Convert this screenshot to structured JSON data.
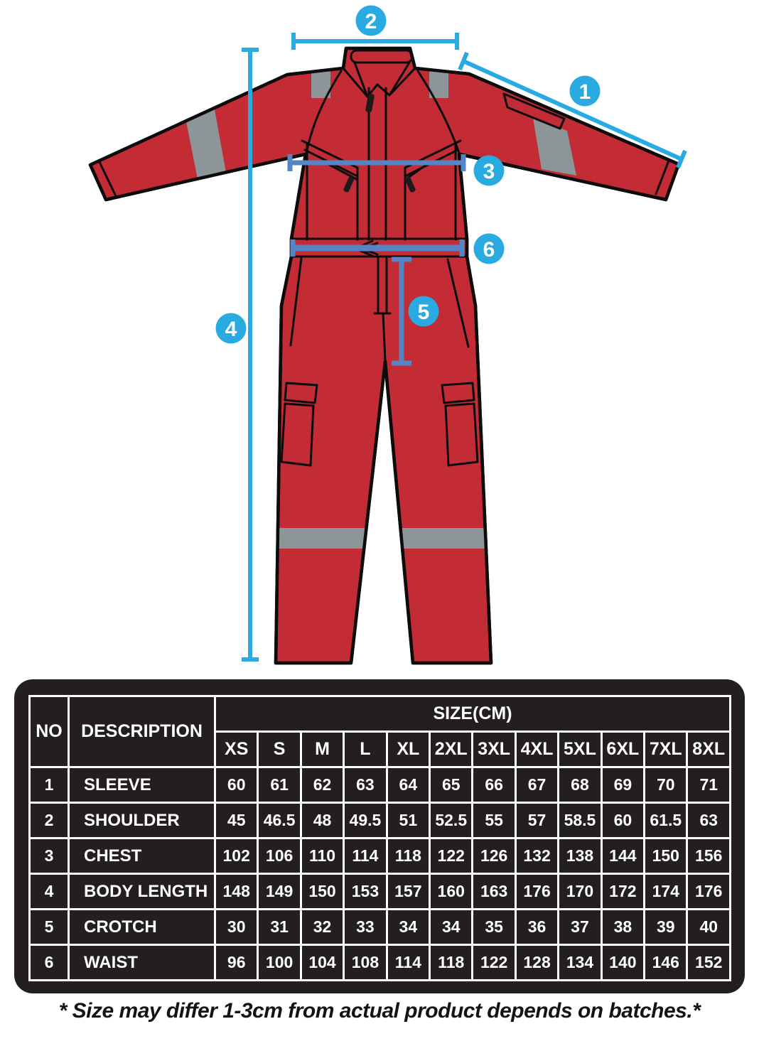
{
  "diagram": {
    "garment": "coverall-front-view",
    "suit_color": "#C32B35",
    "reflective_stripe_color": "#8E9598",
    "annotation_color": "#29ABE2",
    "annotation_over_garment_color": "#5585C5",
    "markers": [
      {
        "label": "1"
      },
      {
        "label": "2"
      },
      {
        "label": "3"
      },
      {
        "label": "4"
      },
      {
        "label": "5"
      },
      {
        "label": "6"
      }
    ]
  },
  "table": {
    "background_color": "#231F20",
    "header": {
      "no": "NO",
      "description": "DESCRIPTION",
      "size_group": "SIZE(CM)",
      "sizes": [
        "XS",
        "S",
        "M",
        "L",
        "XL",
        "2XL",
        "3XL",
        "4XL",
        "5XL",
        "6XL",
        "7XL",
        "8XL"
      ]
    },
    "rows": [
      {
        "no": "1",
        "description": "SLEEVE",
        "values": [
          60,
          61,
          62,
          63,
          64,
          65,
          66,
          67,
          68,
          69,
          70,
          71
        ]
      },
      {
        "no": "2",
        "description": "SHOULDER",
        "values": [
          45,
          46.5,
          48,
          49.5,
          51,
          52.5,
          55,
          57,
          58.5,
          60,
          61.5,
          63
        ]
      },
      {
        "no": "3",
        "description": "CHEST",
        "values": [
          102,
          106,
          110,
          114,
          118,
          122,
          126,
          132,
          138,
          144,
          150,
          156
        ]
      },
      {
        "no": "4",
        "description": "BODY LENGTH",
        "values": [
          148,
          149,
          150,
          153,
          157,
          160,
          163,
          176,
          170,
          172,
          174,
          176
        ]
      },
      {
        "no": "5",
        "description": "CROTCH",
        "values": [
          30,
          31,
          32,
          33,
          34,
          34,
          35,
          36,
          37,
          38,
          39,
          40
        ]
      },
      {
        "no": "6",
        "description": "WAIST",
        "values": [
          96,
          100,
          104,
          108,
          114,
          118,
          122,
          128,
          134,
          140,
          146,
          152
        ]
      }
    ]
  },
  "footnote": "* Size may differ 1-3cm from actual product depends on batches.*"
}
